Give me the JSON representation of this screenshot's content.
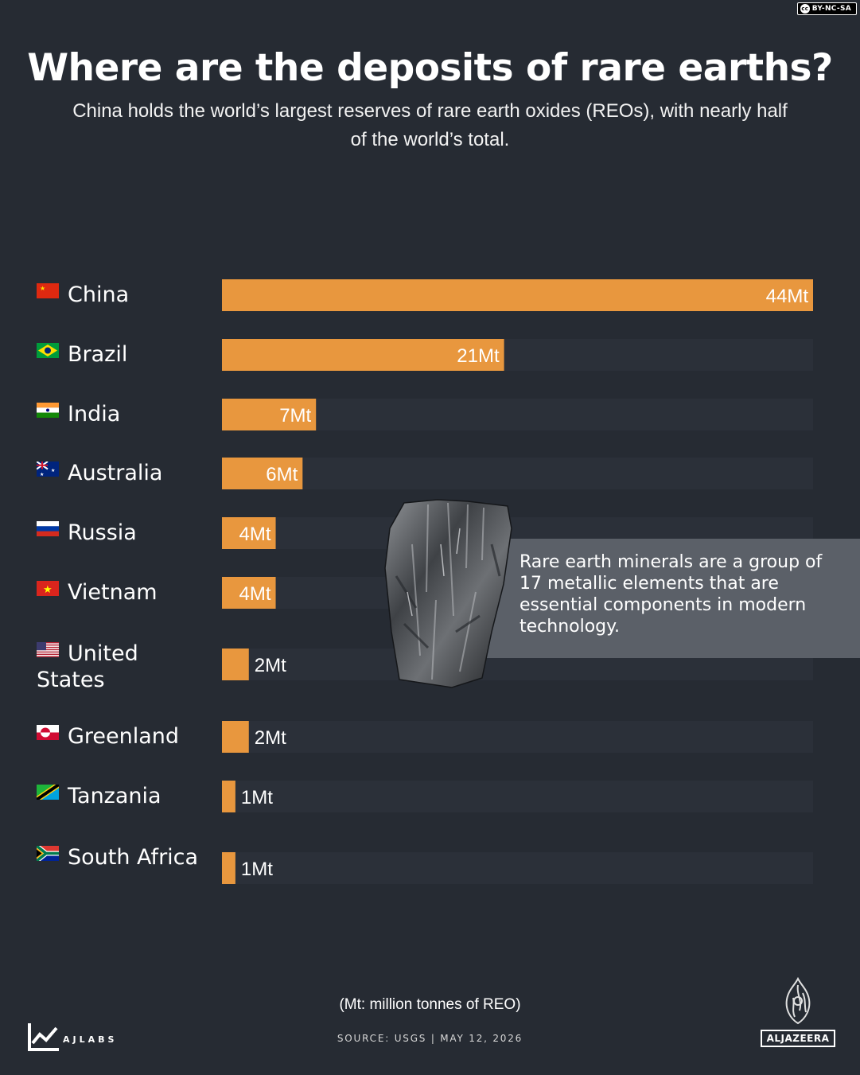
{
  "license": "BY-NC-SA",
  "title": "Where are the deposits of rare earths?",
  "subtitle": "China holds the world’s largest reserves of rare earth oxides (REOs), with nearly half of the world’s total.",
  "chart_data": {
    "type": "bar",
    "orientation": "horizontal",
    "categories": [
      "China",
      "Brazil",
      "India",
      "Australia",
      "Russia",
      "Vietnam",
      "United States",
      "Greenland",
      "Tanzania",
      "South Africa"
    ],
    "values": [
      44,
      21,
      7,
      6,
      4,
      4,
      2,
      2,
      1,
      1
    ],
    "value_labels": [
      "44Mt",
      "21Mt",
      "7Mt",
      "6Mt",
      "4Mt",
      "4Mt",
      "2Mt",
      "2Mt",
      "1Mt",
      "1Mt"
    ],
    "unit": "Mt",
    "xlim": [
      0,
      44
    ],
    "bar_color": "#e8973e",
    "track_color": "#2b3039",
    "grid": false
  },
  "flag_icons": [
    "china-flag-icon",
    "brazil-flag-icon",
    "india-flag-icon",
    "australia-flag-icon",
    "russia-flag-icon",
    "vietnam-flag-icon",
    "usa-flag-icon",
    "greenland-flag-icon",
    "tanzania-flag-icon",
    "south-africa-flag-icon"
  ],
  "callout": {
    "text": "Rare earth minerals are a group of 17 metallic elements that are essential components in modern technology.",
    "image": "rare-earth-rock-icon"
  },
  "unit_note": "(Mt: million tonnes of REO)",
  "source": "SOURCE:  USGS  |  MAY 12, 2026",
  "footer": {
    "left_logo": "AJLABS",
    "right_logo": "ALJAZEERA"
  },
  "colors": {
    "background": "#262b33",
    "accent": "#e8973e",
    "callout_bg": "#5b6068"
  }
}
